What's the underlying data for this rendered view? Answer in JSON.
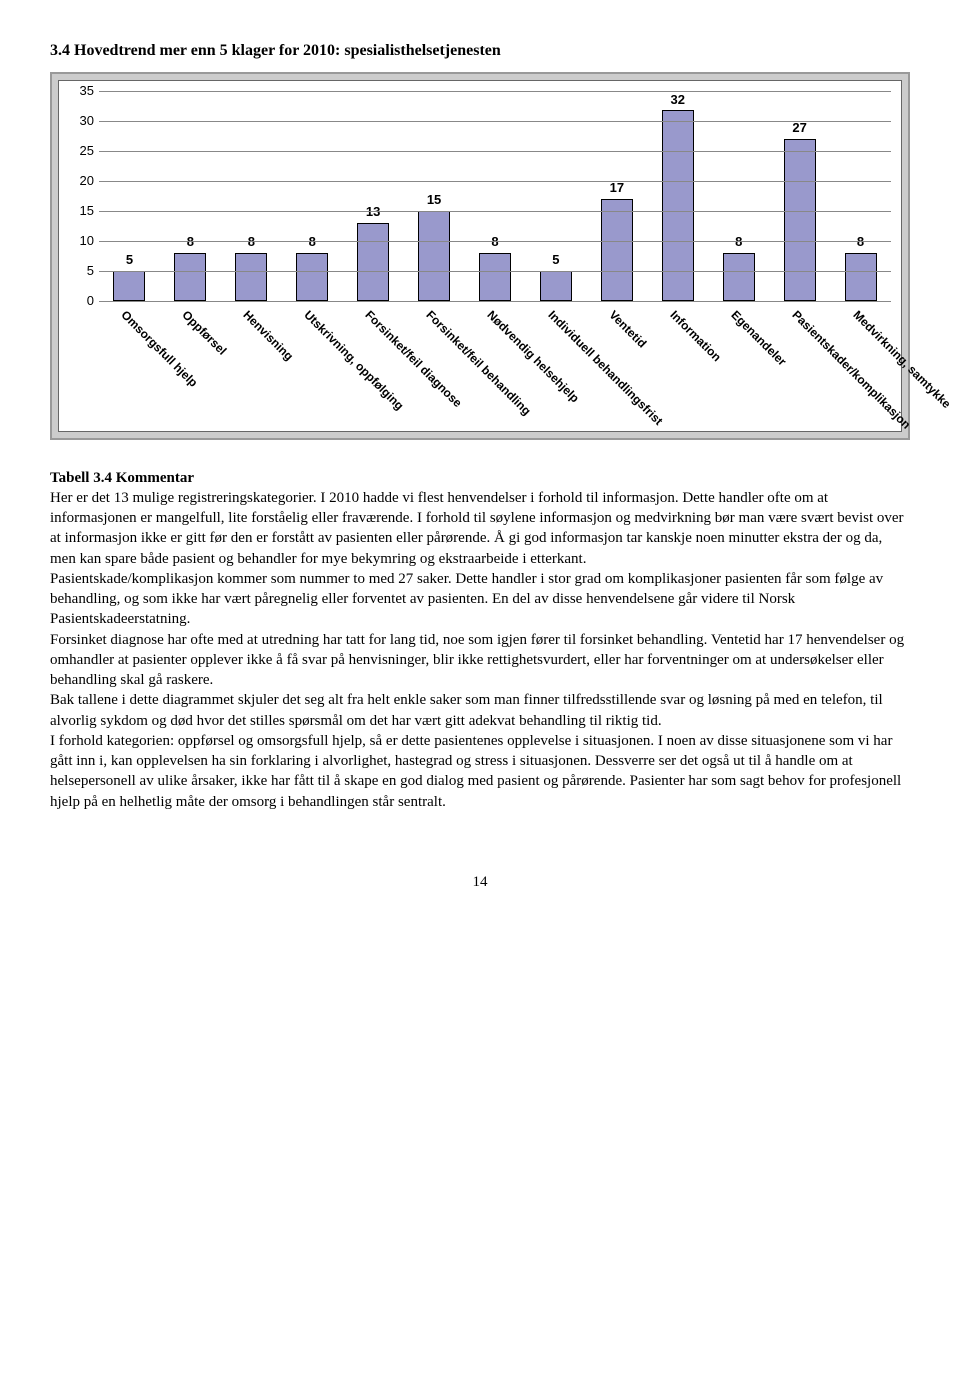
{
  "section_title": "3.4 Hovedtrend mer enn 5 klager for 2010: spesialisthelsetjenesten",
  "chart": {
    "type": "bar",
    "ylim": [
      0,
      35
    ],
    "ytick_step": 5,
    "yticks": [
      0,
      5,
      10,
      15,
      20,
      25,
      30,
      35
    ],
    "bar_color": "#9999cc",
    "bar_border": "#000000",
    "grid_color": "#888888",
    "background_color": "#ffffff",
    "outer_bg": "#cccccc",
    "outer_border": "#999999",
    "label_fontsize": 13,
    "value_fontsize": 13,
    "categories": [
      "Omsorgsfull hjelp",
      "Oppførsel",
      "Henvisning",
      "Utskrivning, oppfølging",
      "Forsinket/feil diagnose",
      "Forsinket/feil behandling",
      "Nødvendig helsehjelp",
      "Individuell behandlingsfrist",
      "Ventetid",
      "Information",
      "Egenandeler",
      "Pasientskader/komplikasjon",
      "Medvirkning, samtykke"
    ],
    "values": [
      5,
      8,
      8,
      8,
      13,
      15,
      8,
      5,
      17,
      32,
      8,
      27,
      8
    ]
  },
  "comment": {
    "heading": "Tabell 3.4 Kommentar",
    "paragraphs": [
      "Her er det 13 mulige registreringskategorier. I 2010 hadde vi flest henvendelser i forhold til informasjon. Dette handler ofte om at informasjonen er mangelfull, lite forståelig eller fraværende. I forhold til søylene informasjon og medvirkning bør man være svært bevist over at informasjon ikke er gitt før den er forstått av pasienten eller pårørende. Å gi god informasjon tar kanskje noen minutter ekstra der og da, men kan spare både pasient og behandler for mye bekymring og ekstraarbeide i etterkant.",
      "Pasientskade/komplikasjon kommer som nummer to med 27 saker. Dette handler i stor grad om komplikasjoner pasienten får som følge av behandling, og som ikke har vært påregnelig eller forventet av pasienten. En del av disse henvendelsene går videre til Norsk Pasientskadeerstatning.",
      "Forsinket diagnose har ofte med at utredning har tatt for lang tid, noe som igjen fører til forsinket behandling. Ventetid har 17 henvendelser og omhandler at pasienter opplever ikke å få svar på henvisninger, blir ikke rettighetsvurdert, eller har forventninger om at undersøkelser eller behandling skal gå raskere.",
      "Bak tallene i dette diagrammet skjuler det seg alt fra helt enkle saker som man finner tilfredsstillende svar og løsning på med en telefon, til alvorlig sykdom og død hvor det stilles spørsmål om det har vært gitt adekvat behandling til riktig tid.",
      "I forhold kategorien: oppførsel og omsorgsfull hjelp, så er dette pasientenes opplevelse i situasjonen. I noen av disse situasjonene som vi har gått inn i, kan opplevelsen ha sin forklaring i alvorlighet, hastegrad og stress i situasjonen. Dessverre ser det også ut til å handle om at helsepersonell av ulike årsaker, ikke har fått til å skape en god dialog med pasient og pårørende. Pasienter har som sagt behov for profesjonell hjelp på en helhetlig måte der omsorg i behandlingen står sentralt."
    ]
  },
  "page_number": "14"
}
